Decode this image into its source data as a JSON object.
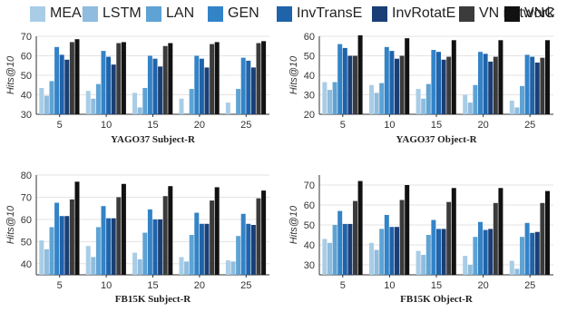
{
  "legend": {
    "items": [
      {
        "name": "MEAN",
        "color": "#a9cde6"
      },
      {
        "name": "LSTM",
        "color": "#8fbcdf"
      },
      {
        "name": "LAN",
        "color": "#5ea3d4"
      },
      {
        "name": "GEN",
        "color": "#3383c7"
      },
      {
        "name": "InvTransE",
        "color": "#1f63aa"
      },
      {
        "name": "InvRotatE",
        "color": "#1a3f77"
      },
      {
        "name": "VN network",
        "color": "#3b3b3b"
      },
      {
        "name": "VNC",
        "color": "#111111"
      }
    ]
  },
  "chart_data": [
    {
      "type": "bar",
      "title": "YAGO37 Subject-R",
      "ylabel": "Hits@10",
      "categories": [
        "5",
        "10",
        "15",
        "20",
        "25"
      ],
      "ylim": [
        30,
        70
      ],
      "yticks": [
        30,
        40,
        50,
        60,
        70
      ],
      "series": [
        {
          "name": "MEAN",
          "values": [
            43.5,
            42,
            41,
            38,
            36
          ]
        },
        {
          "name": "LSTM",
          "values": [
            39.5,
            38,
            33.5,
            30,
            27.5
          ]
        },
        {
          "name": "LAN",
          "values": [
            47,
            45.5,
            43.5,
            43,
            43
          ]
        },
        {
          "name": "GEN",
          "values": [
            64.5,
            62.5,
            60,
            60,
            59
          ]
        },
        {
          "name": "InvTransE",
          "values": [
            60.5,
            59.5,
            58.5,
            58.5,
            57.5
          ]
        },
        {
          "name": "InvRotatE",
          "values": [
            58,
            55.5,
            54.5,
            54,
            54
          ]
        },
        {
          "name": "VN network",
          "values": [
            67,
            66.5,
            65,
            66,
            66.5
          ]
        },
        {
          "name": "VNC",
          "values": [
            68.5,
            67,
            66.5,
            67,
            67.5
          ]
        }
      ]
    },
    {
      "type": "bar",
      "title": "YAGO37 Object-R",
      "ylabel": "Hits@10",
      "categories": [
        "5",
        "10",
        "15",
        "20",
        "25"
      ],
      "ylim": [
        20,
        60
      ],
      "yticks": [
        20,
        30,
        40,
        50,
        60
      ],
      "series": [
        {
          "name": "MEAN",
          "values": [
            36.5,
            35,
            33,
            30,
            27
          ]
        },
        {
          "name": "LSTM",
          "values": [
            32.5,
            31,
            28,
            26,
            23.5
          ]
        },
        {
          "name": "LAN",
          "values": [
            36.5,
            36,
            35.5,
            35,
            34.5
          ]
        },
        {
          "name": "GEN",
          "values": [
            56,
            54.5,
            53,
            52,
            50.5
          ]
        },
        {
          "name": "InvTransE",
          "values": [
            54,
            52.5,
            52,
            51,
            49.5
          ]
        },
        {
          "name": "InvRotatE",
          "values": [
            50,
            48.5,
            48,
            47,
            46.5
          ]
        },
        {
          "name": "VN network",
          "values": [
            50,
            50,
            49.5,
            49.5,
            49
          ]
        },
        {
          "name": "VNC",
          "values": [
            60.5,
            59,
            58,
            58,
            58
          ]
        }
      ]
    },
    {
      "type": "bar",
      "title": "FB15K Subject-R",
      "ylabel": "Hits@10",
      "categories": [
        "5",
        "10",
        "15",
        "20",
        "25"
      ],
      "ylim": [
        35,
        80
      ],
      "yticks": [
        40,
        50,
        60,
        70,
        80
      ],
      "series": [
        {
          "name": "MEAN",
          "values": [
            50.5,
            48,
            45,
            43,
            41.5
          ]
        },
        {
          "name": "LSTM",
          "values": [
            46.5,
            43,
            42,
            41,
            41
          ]
        },
        {
          "name": "LAN",
          "values": [
            56.5,
            56.5,
            54,
            53,
            52.5
          ]
        },
        {
          "name": "GEN",
          "values": [
            67.5,
            66,
            64.5,
            63,
            62.5
          ]
        },
        {
          "name": "InvTransE",
          "values": [
            61.5,
            60.5,
            60,
            58,
            58
          ]
        },
        {
          "name": "InvRotatE",
          "values": [
            61.5,
            60.5,
            60,
            58,
            57.5
          ]
        },
        {
          "name": "VN network",
          "values": [
            69,
            70,
            70.5,
            68.5,
            69.5
          ]
        },
        {
          "name": "VNC",
          "values": [
            77,
            76,
            75,
            74.5,
            73
          ]
        }
      ]
    },
    {
      "type": "bar",
      "title": "FB15K Object-R",
      "ylabel": "Hits@10",
      "categories": [
        "5",
        "10",
        "15",
        "20",
        "25"
      ],
      "ylim": [
        25,
        75
      ],
      "yticks": [
        30,
        40,
        50,
        60,
        70
      ],
      "series": [
        {
          "name": "MEAN",
          "values": [
            43,
            41,
            37,
            34.5,
            32
          ]
        },
        {
          "name": "LSTM",
          "values": [
            41,
            37.5,
            35,
            30,
            28
          ]
        },
        {
          "name": "LAN",
          "values": [
            50,
            48,
            45,
            44,
            44
          ]
        },
        {
          "name": "GEN",
          "values": [
            57,
            55,
            52.5,
            51.5,
            51
          ]
        },
        {
          "name": "InvTransE",
          "values": [
            50.5,
            49,
            48,
            47.5,
            46
          ]
        },
        {
          "name": "InvRotatE",
          "values": [
            50.5,
            49,
            48,
            48,
            46.5
          ]
        },
        {
          "name": "VN network",
          "values": [
            62,
            62.5,
            61.5,
            61,
            61
          ]
        },
        {
          "name": "VNC",
          "values": [
            72,
            70,
            68.5,
            68.5,
            67
          ]
        }
      ]
    }
  ]
}
